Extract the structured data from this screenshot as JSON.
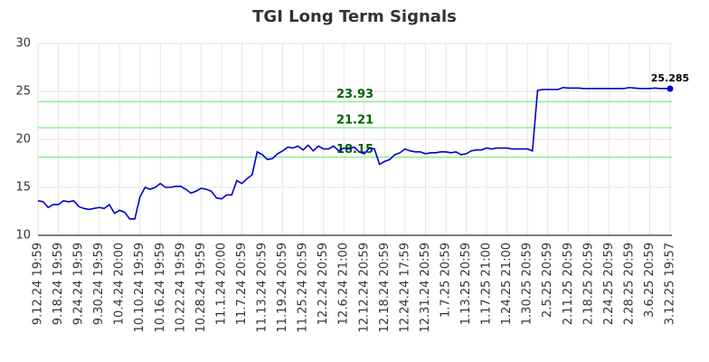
{
  "chart_data": {
    "type": "line",
    "title": "TGI Long Term Signals",
    "categories": [
      "9.12.24 19:59",
      null,
      null,
      null,
      "9.18.24 19:59",
      null,
      null,
      null,
      "9.24.24 19:59",
      null,
      null,
      null,
      "9.30.24 19:59",
      null,
      null,
      null,
      "10.4.24 20:00",
      null,
      null,
      null,
      "10.10.24 19:59",
      null,
      null,
      null,
      "10.16.24 19:59",
      null,
      null,
      null,
      "10.22.24 19:59",
      null,
      null,
      null,
      "10.28.24 19:59",
      null,
      null,
      null,
      "11.1.24 20:00",
      null,
      null,
      null,
      "11.7.24 20:59",
      null,
      null,
      null,
      "11.13.24 20:59",
      null,
      null,
      null,
      "11.19.24 20:59",
      null,
      null,
      null,
      "11.25.24 20:59",
      null,
      null,
      null,
      "12.2.24 20:59",
      null,
      null,
      null,
      "12.6.24 21:00",
      null,
      null,
      null,
      "12.12.24 20:59",
      null,
      null,
      null,
      "12.18.24 20:59",
      null,
      null,
      null,
      "12.24.24 17:59",
      null,
      null,
      null,
      "12.31.24 20:59",
      null,
      null,
      null,
      "1.7.25 20:59",
      null,
      null,
      null,
      "1.13.25 20:59",
      null,
      null,
      null,
      "1.17.25 21:00",
      null,
      null,
      null,
      "1.24.25 21:00",
      null,
      null,
      null,
      "1.30.25 20:59",
      null,
      null,
      null,
      "2.5.25 20:59",
      null,
      null,
      null,
      "2.11.25 20:59",
      null,
      null,
      null,
      "2.18.25 20:59",
      null,
      null,
      null,
      "2.24.25 20:59",
      null,
      null,
      null,
      "2.28.25 20:59",
      null,
      null,
      null,
      "3.6.25 20:59",
      null,
      null,
      null,
      "3.12.25 19:57"
    ],
    "series": [
      {
        "color": "#0000cc",
        "values": [
          13.6,
          13.5,
          12.9,
          13.2,
          13.2,
          13.6,
          13.5,
          13.6,
          13.0,
          12.8,
          12.7,
          12.8,
          12.9,
          12.8,
          13.2,
          12.3,
          12.6,
          12.4,
          11.7,
          11.7,
          14.0,
          15.0,
          14.8,
          15.0,
          15.4,
          15.0,
          15.0,
          15.1,
          15.1,
          14.8,
          14.4,
          14.6,
          14.9,
          14.8,
          14.6,
          13.9,
          13.8,
          14.2,
          14.2,
          15.7,
          15.4,
          15.9,
          16.3,
          18.7,
          18.4,
          17.9,
          18.0,
          18.5,
          18.8,
          19.2,
          19.1,
          19.3,
          18.9,
          19.4,
          18.8,
          19.3,
          19.0,
          19.0,
          19.3,
          18.8,
          19.1,
          19.0,
          19.2,
          18.7,
          18.5,
          19.1,
          19.0,
          17.4,
          17.7,
          17.9,
          18.4,
          18.6,
          19.0,
          18.8,
          18.7,
          18.7,
          18.5,
          18.6,
          18.6,
          18.7,
          18.7,
          18.6,
          18.7,
          18.4,
          18.5,
          18.8,
          18.9,
          18.9,
          19.1,
          19.0,
          19.1,
          19.1,
          19.1,
          19.0,
          19.0,
          19.0,
          19.0,
          18.8,
          25.1,
          25.2,
          25.2,
          25.2,
          25.2,
          25.4,
          25.35,
          25.35,
          25.35,
          25.3,
          25.3,
          25.3,
          25.3,
          25.3,
          25.3,
          25.3,
          25.3,
          25.3,
          25.4,
          25.35,
          25.3,
          25.3,
          25.3,
          25.35,
          25.3,
          25.3,
          25.285
        ]
      }
    ],
    "hlines": [
      {
        "value": 23.93,
        "color": "#90ee90",
        "label_color": "#006400"
      },
      {
        "value": 21.21,
        "color": "#90ee90",
        "label_color": "#006400"
      },
      {
        "value": 18.15,
        "color": "#90ee90",
        "label_color": "#006400"
      }
    ],
    "annotate_last": true,
    "ylim": [
      10,
      30
    ],
    "yticks": [
      10,
      15,
      20,
      25,
      30
    ],
    "grid": true
  }
}
